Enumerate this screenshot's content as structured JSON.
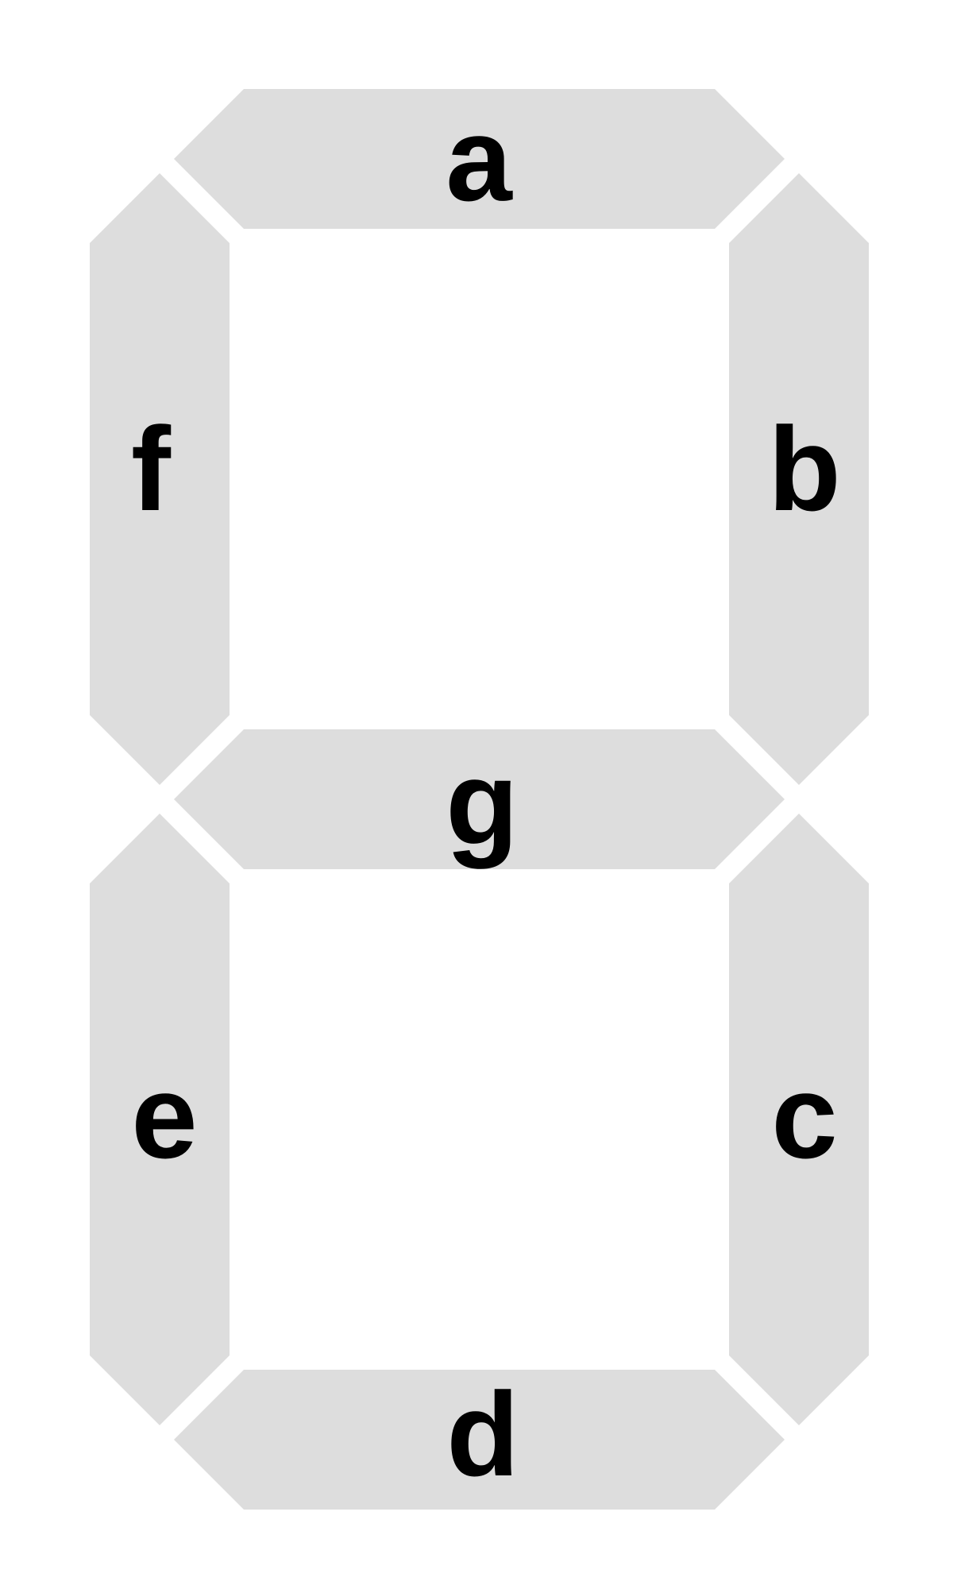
{
  "segments": {
    "a": {
      "label": "a",
      "on": false
    },
    "b": {
      "label": "b",
      "on": false
    },
    "c": {
      "label": "c",
      "on": false
    },
    "d": {
      "label": "d",
      "on": false
    },
    "e": {
      "label": "e",
      "on": false
    },
    "f": {
      "label": "f",
      "on": false
    },
    "g": {
      "label": "g",
      "on": false
    }
  },
  "colors": {
    "segment_fill": "#dddddd",
    "label": "#000000",
    "background": "#ffffff"
  }
}
